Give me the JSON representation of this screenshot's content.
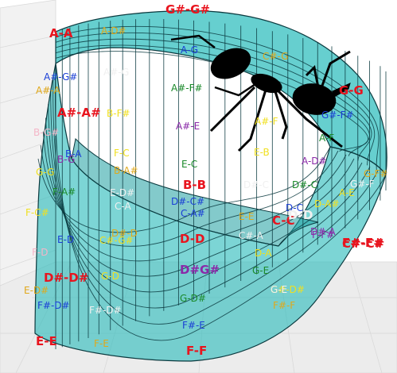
{
  "colors": {
    "surface": "#2bbcbc",
    "mesh": "#0b3a3f",
    "ant": "#000000"
  },
  "labels": [
    {
      "text": "G#-G#",
      "color": "#e8141e",
      "big": true
    },
    {
      "text": "A-A",
      "color": "#e8141e",
      "big": true
    },
    {
      "text": "A-D#",
      "color": "#e0a81a",
      "big": false
    },
    {
      "text": "A-G",
      "color": "#1a3fd6",
      "big": false
    },
    {
      "text": "C#-G",
      "color": "#e0a81a",
      "big": false
    },
    {
      "text": "A#-G#",
      "color": "#1a3fd6",
      "big": false
    },
    {
      "text": "A#-G",
      "color": "#f0f0f0",
      "big": false
    },
    {
      "text": "A#-A",
      "color": "#e0a81a",
      "big": false
    },
    {
      "text": "A#-F#",
      "color": "#1a8a2a",
      "big": false
    },
    {
      "text": "G-G",
      "color": "#e8141e",
      "big": true
    },
    {
      "text": "A#-A#",
      "color": "#e8141e",
      "big": true
    },
    {
      "text": "B-F#",
      "color": "#f0e020",
      "big": false
    },
    {
      "text": "G#-F#",
      "color": "#1a3fd6",
      "big": false
    },
    {
      "text": "B-G#",
      "color": "#f4b6c8",
      "big": false
    },
    {
      "text": "A#-E",
      "color": "#8a2aa8",
      "big": false
    },
    {
      "text": "A#-F",
      "color": "#f0e020",
      "big": false
    },
    {
      "text": "A-F",
      "color": "#1a8a2a",
      "big": false
    },
    {
      "text": "B-A",
      "color": "#1a3fd6",
      "big": false
    },
    {
      "text": "F-C",
      "color": "#f0e020",
      "big": false
    },
    {
      "text": "E-B",
      "color": "#f0e020",
      "big": false
    },
    {
      "text": "B-G",
      "color": "#8a2aa8",
      "big": false
    },
    {
      "text": "A-D#",
      "color": "#8a2aa8",
      "big": false
    },
    {
      "text": "G-F#",
      "color": "#e0a81a",
      "big": false
    },
    {
      "text": "G-G",
      "color": "#f0e020",
      "big": false
    },
    {
      "text": "B-A#",
      "color": "#e0a81a",
      "big": false
    },
    {
      "text": "E-C",
      "color": "#1a8a2a",
      "big": false
    },
    {
      "text": "B-B",
      "color": "#e8141e",
      "big": true
    },
    {
      "text": "D#-C",
      "color": "#f0f0f0",
      "big": false
    },
    {
      "text": "D#-C",
      "color": "#1a8a2a",
      "big": false
    },
    {
      "text": "A-E",
      "color": "#f0e020",
      "big": false
    },
    {
      "text": "G#-F",
      "color": "#f0f0f0",
      "big": false
    },
    {
      "text": "F-A#",
      "color": "#1a8a2a",
      "big": false
    },
    {
      "text": "E-D#",
      "color": "#f0f0f0",
      "big": false
    },
    {
      "text": "D#-C#",
      "color": "#1a3fd6",
      "big": false
    },
    {
      "text": "D-A#",
      "color": "#f0e020",
      "big": false
    },
    {
      "text": "C-A",
      "color": "#f0f0f0",
      "big": false
    },
    {
      "text": "C-A#",
      "color": "#1a3fd6",
      "big": false
    },
    {
      "text": "D-C",
      "color": "#1a3fd6",
      "big": false
    },
    {
      "text": "F-C#",
      "color": "#f0e020",
      "big": false
    },
    {
      "text": "E-E",
      "color": "#e0a81a",
      "big": false
    },
    {
      "text": "C-C",
      "color": "#e8141e",
      "big": true
    },
    {
      "text": "D-D",
      "color": "#f0f0f0",
      "big": true
    },
    {
      "text": "F-F#",
      "color": "#8a2aa8",
      "big": false
    },
    {
      "text": "D#-D",
      "color": "#e0a81a",
      "big": false
    },
    {
      "text": "C#-A",
      "color": "#f0f0f0",
      "big": false
    },
    {
      "text": "C#-C#",
      "color": "#e8141e",
      "big": true
    },
    {
      "text": "E-D",
      "color": "#1a3fd6",
      "big": false
    },
    {
      "text": "C#-G#",
      "color": "#f0e020",
      "big": false
    },
    {
      "text": "D-D",
      "color": "#e8141e",
      "big": true
    },
    {
      "text": "D#-A",
      "color": "#8a2aa8",
      "big": false
    },
    {
      "text": "F#-F#",
      "color": "#e8141e",
      "big": true
    },
    {
      "text": "F-D",
      "color": "#f4b6c8",
      "big": false
    },
    {
      "text": "D-A",
      "color": "#f0e020",
      "big": false
    },
    {
      "text": "G-E",
      "color": "#1a8a2a",
      "big": false
    },
    {
      "text": "G#-D#",
      "color": "#f0e020",
      "big": false
    },
    {
      "text": "D#-D#",
      "color": "#e8141e",
      "big": true
    },
    {
      "text": "G-D",
      "color": "#f0e020",
      "big": false
    },
    {
      "text": "D#G#",
      "color": "#8a2aa8",
      "big": true
    },
    {
      "text": "G-E",
      "color": "#f0f0f0",
      "big": false
    },
    {
      "text": "E-D#",
      "color": "#e0a81a",
      "big": false
    },
    {
      "text": "G-D#",
      "color": "#1a8a2a",
      "big": false
    },
    {
      "text": "F#-D#",
      "color": "#1a3fd6",
      "big": false
    },
    {
      "text": "F#-D#",
      "color": "#f0f0f0",
      "big": false
    },
    {
      "text": "F#-E",
      "color": "#1a3fd6",
      "big": false
    },
    {
      "text": "F#-F",
      "color": "#e0a81a",
      "big": false
    },
    {
      "text": "E-E",
      "color": "#e8141e",
      "big": true
    },
    {
      "text": "F-E",
      "color": "#e0a81a",
      "big": false
    },
    {
      "text": "F-F",
      "color": "#e8141e",
      "big": true
    }
  ]
}
